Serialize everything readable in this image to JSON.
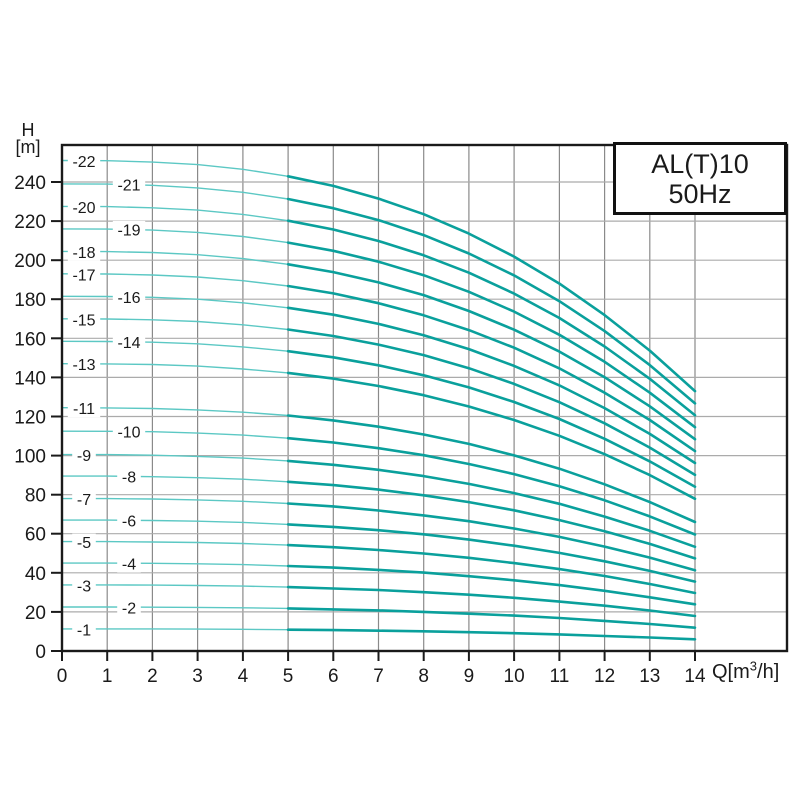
{
  "title_box": {
    "line1": "AL(T)10",
    "line2": "50Hz"
  },
  "axes": {
    "y_line1": "H",
    "y_line2": "[m]",
    "x_prefix": "Q[m",
    "x_sup": "3",
    "x_suffix": "/h]"
  },
  "colors": {
    "curve_main": "#0aa09c",
    "curve_light": "#5cc8c4",
    "grid_horizontal": "#ababab",
    "grid_vertical": "#8a8a8a",
    "frame": "#1a1a1a",
    "text": "#1a1a1a",
    "title_border": "#111111"
  },
  "chart_data": {
    "type": "line",
    "title": "AL(T)10",
    "subtitle": "50Hz",
    "xlabel": "Q[m³/h]",
    "ylabel": "H [m]",
    "x_range": [
      0,
      16
    ],
    "y_range": [
      0,
      259
    ],
    "grid": true,
    "legend": "inline curve labels",
    "x_ticks": [
      0,
      1,
      2,
      3,
      4,
      5,
      6,
      7,
      8,
      9,
      10,
      11,
      12,
      13,
      14
    ],
    "y_ticks": [
      0,
      20,
      40,
      60,
      80,
      100,
      120,
      140,
      160,
      180,
      200,
      220,
      240
    ],
    "x": [
      0,
      1,
      2,
      3,
      4,
      5,
      6,
      7,
      8,
      9,
      10,
      11,
      12,
      13,
      14
    ],
    "thin_segment_max_q": 5,
    "series": [
      {
        "name": "-1",
        "label_col": 0,
        "values": [
          11.3,
          11.3,
          11.3,
          11.2,
          11.1,
          10.9,
          10.7,
          10.4,
          10.1,
          9.6,
          9.1,
          8.5,
          7.7,
          6.9,
          6.0
        ]
      },
      {
        "name": "-2",
        "label_col": 1,
        "values": [
          22.5,
          22.5,
          22.4,
          22.3,
          22.1,
          21.8,
          21.3,
          20.8,
          20.0,
          19.1,
          18.1,
          16.9,
          15.4,
          13.8,
          11.9
        ]
      },
      {
        "name": "-3",
        "label_col": 0,
        "values": [
          33.8,
          33.8,
          33.7,
          33.5,
          33.2,
          32.7,
          32.0,
          31.2,
          30.1,
          28.8,
          27.2,
          25.3,
          23.2,
          20.7,
          17.9
        ]
      },
      {
        "name": "-4",
        "label_col": 1,
        "values": [
          45.0,
          45.0,
          44.9,
          44.6,
          44.2,
          43.5,
          42.7,
          41.5,
          40.1,
          38.3,
          36.2,
          33.7,
          30.8,
          27.5,
          23.9
        ]
      },
      {
        "name": "-5",
        "label_col": 0,
        "values": [
          56.0,
          56.0,
          55.8,
          55.5,
          55.0,
          54.2,
          53.1,
          51.7,
          49.9,
          47.7,
          45.0,
          41.9,
          38.4,
          34.3,
          29.7
        ]
      },
      {
        "name": "-6",
        "label_col": 1,
        "values": [
          67.0,
          67.0,
          66.8,
          66.4,
          65.8,
          64.8,
          63.5,
          61.8,
          59.7,
          57.0,
          53.9,
          50.2,
          45.9,
          41.0,
          35.5
        ]
      },
      {
        "name": "-7",
        "label_col": 0,
        "values": [
          78.0,
          78.0,
          77.8,
          77.3,
          76.6,
          75.5,
          74.0,
          71.9,
          69.4,
          66.4,
          62.7,
          58.4,
          53.4,
          47.8,
          41.3
        ]
      },
      {
        "name": "-8",
        "label_col": 1,
        "values": [
          89.5,
          89.5,
          89.2,
          88.7,
          87.9,
          86.6,
          84.9,
          82.6,
          79.7,
          76.2,
          72.0,
          67.0,
          61.3,
          54.8,
          47.4
        ]
      },
      {
        "name": "-9",
        "label_col": 0,
        "values": [
          100.5,
          100.5,
          100.2,
          99.6,
          98.7,
          97.3,
          95.3,
          92.7,
          89.5,
          85.5,
          80.8,
          75.3,
          68.8,
          61.5,
          53.3
        ]
      },
      {
        "name": "-10",
        "label_col": 1,
        "values": [
          112.5,
          112.4,
          112.2,
          111.5,
          110.5,
          108.9,
          106.7,
          103.8,
          100.2,
          95.7,
          90.5,
          84.3,
          77.1,
          68.9,
          59.6
        ]
      },
      {
        "name": "-11",
        "label_col": 0,
        "values": [
          124.5,
          124.4,
          124.1,
          123.4,
          122.2,
          120.5,
          118.0,
          114.8,
          110.8,
          106.0,
          100.1,
          93.3,
          85.3,
          76.2,
          66.0
        ]
      },
      {
        "name": "-13",
        "label_col": 0,
        "values": [
          147.0,
          146.9,
          146.6,
          145.8,
          144.3,
          142.3,
          139.4,
          135.6,
          130.9,
          125.1,
          118.2,
          110.1,
          100.7,
          90.0,
          77.9
        ]
      },
      {
        "name": "-14",
        "label_col": 1,
        "values": [
          158.5,
          158.4,
          158.0,
          157.2,
          155.6,
          153.4,
          150.3,
          146.2,
          141.1,
          134.9,
          127.4,
          118.7,
          108.6,
          97.0,
          84.0
        ]
      },
      {
        "name": "-15",
        "label_col": 0,
        "values": [
          170.0,
          169.9,
          169.5,
          168.6,
          166.9,
          164.5,
          161.2,
          156.8,
          151.4,
          144.7,
          136.7,
          127.3,
          116.5,
          104.1,
          90.1
        ]
      },
      {
        "name": "-16",
        "label_col": 1,
        "values": [
          181.5,
          181.4,
          181.0,
          180.0,
          178.2,
          175.6,
          172.1,
          167.4,
          161.6,
          154.5,
          145.9,
          135.9,
          124.3,
          111.1,
          96.2
        ]
      },
      {
        "name": "-17",
        "label_col": 0,
        "values": [
          193.0,
          192.9,
          192.4,
          191.4,
          189.5,
          186.8,
          183.0,
          178.0,
          171.8,
          164.2,
          155.2,
          144.6,
          132.2,
          118.2,
          102.3
        ]
      },
      {
        "name": "-18",
        "label_col": 0,
        "values": [
          204.5,
          204.4,
          203.9,
          202.8,
          200.8,
          197.9,
          193.9,
          188.6,
          182.1,
          174.0,
          164.4,
          153.2,
          140.1,
          125.2,
          108.4
        ]
      },
      {
        "name": "-19",
        "label_col": 1,
        "values": [
          216.0,
          215.9,
          215.4,
          214.2,
          212.1,
          209.0,
          204.8,
          199.2,
          192.3,
          183.8,
          173.7,
          161.8,
          148.0,
          132.2,
          114.5
        ]
      },
      {
        "name": "-20",
        "label_col": 0,
        "values": [
          227.5,
          227.4,
          226.8,
          225.6,
          223.4,
          220.2,
          215.7,
          209.8,
          202.5,
          193.6,
          182.9,
          170.4,
          155.8,
          139.3,
          120.6
        ]
      },
      {
        "name": "-21",
        "label_col": 1,
        "values": [
          239.0,
          238.9,
          238.3,
          237.0,
          234.7,
          231.3,
          226.6,
          220.5,
          212.8,
          203.4,
          192.2,
          179.0,
          163.7,
          146.3,
          126.7
        ]
      },
      {
        "name": "-22",
        "label_col": 0,
        "values": [
          251.0,
          250.9,
          250.2,
          248.9,
          246.5,
          242.9,
          238.0,
          231.5,
          223.5,
          213.6,
          201.8,
          188.0,
          171.9,
          153.7,
          133.0
        ]
      }
    ]
  }
}
